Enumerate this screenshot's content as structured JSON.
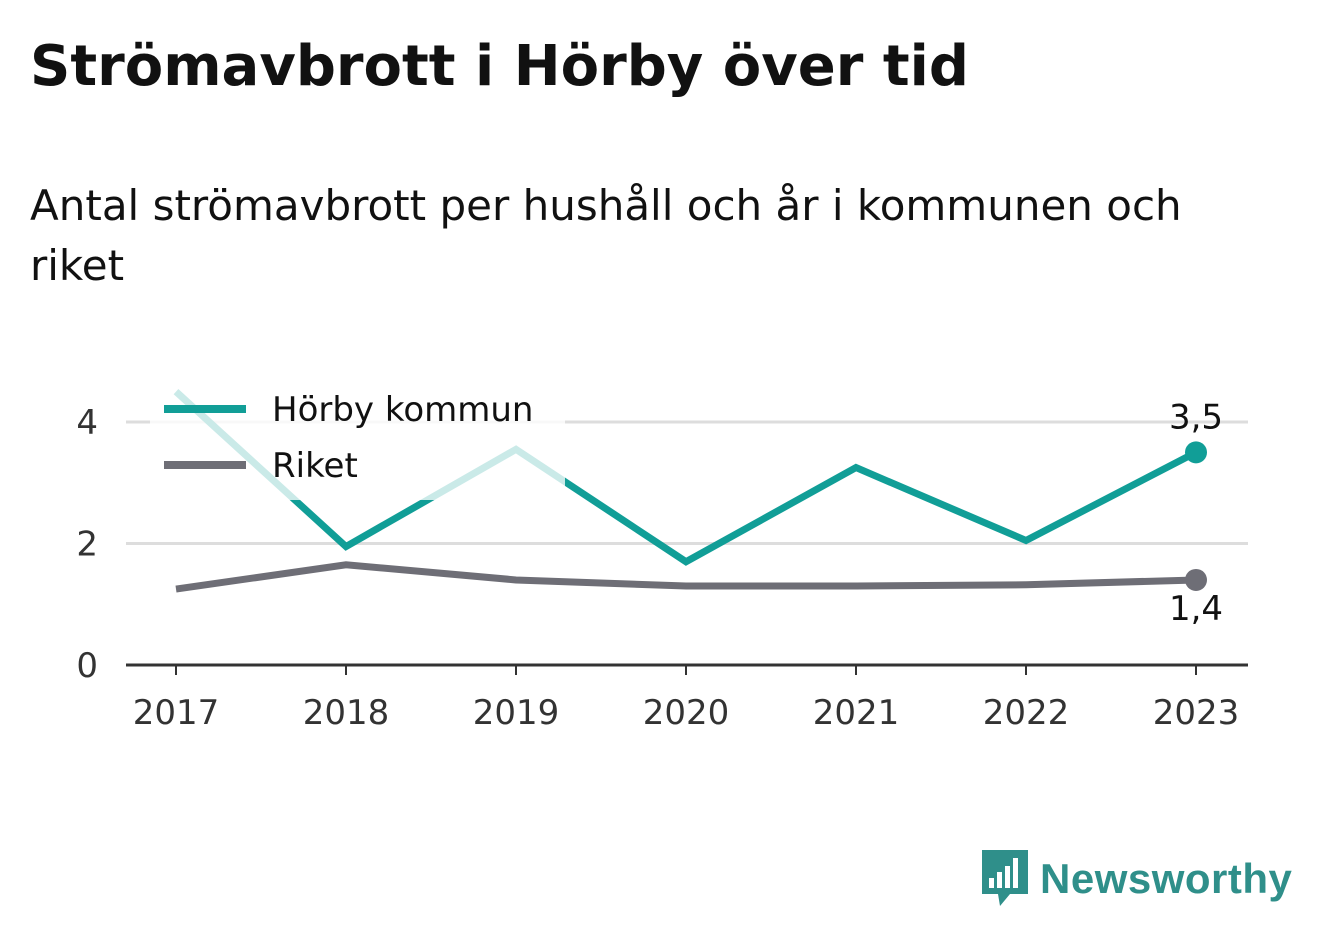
{
  "colors": {
    "horby": "#119e97",
    "horby_faded": "#cdeceb",
    "riket": "#6e6e76",
    "axis": "#333333",
    "grid": "#dddddd",
    "brand": "#2f8f8a"
  },
  "brand": {
    "name": "Newsworthy",
    "icon": "chart-speech-bubble-icon"
  },
  "chart_data": {
    "type": "line",
    "title": "Strömavbrott i Hörby över tid",
    "subtitle": "Antal strömavbrott per hushåll och år i kommunen och riket",
    "x": [
      "2017",
      "2018",
      "2019",
      "2020",
      "2021",
      "2022",
      "2023"
    ],
    "series": [
      {
        "name": "Hörby kommun",
        "values": [
          4.5,
          1.95,
          3.55,
          1.7,
          3.25,
          2.05,
          3.5
        ]
      },
      {
        "name": "Riket",
        "values": [
          1.25,
          1.65,
          1.4,
          1.3,
          1.3,
          1.32,
          1.4
        ]
      }
    ],
    "yticks": [
      "0",
      "2",
      "4"
    ],
    "ylim": [
      0,
      4.8
    ],
    "grid": true,
    "legend_position": "top-left",
    "end_labels": [
      "3,5",
      "1,4"
    ]
  }
}
